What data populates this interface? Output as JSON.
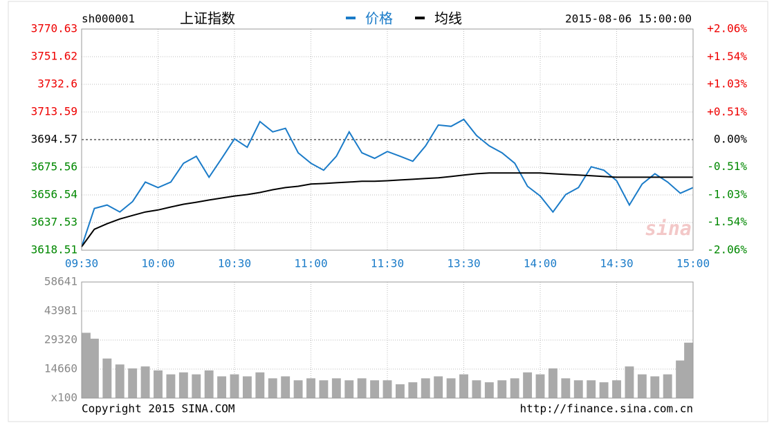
{
  "chart_data": [
    {
      "type": "line",
      "code": "sh000001",
      "title": "上证指数",
      "datetime": "2015-08-06 15:00:00",
      "watermark": "sina",
      "categories": [
        "09:30",
        null,
        null,
        null,
        null,
        null,
        "10:00",
        null,
        null,
        null,
        null,
        null,
        "10:30",
        null,
        null,
        null,
        null,
        null,
        "11:00",
        null,
        null,
        null,
        null,
        null,
        "11:30",
        null,
        null,
        null,
        null,
        null,
        "13:30",
        null,
        null,
        null,
        null,
        null,
        "14:00",
        null,
        null,
        null,
        null,
        null,
        "14:30",
        null,
        null,
        null,
        null,
        null,
        "15:00"
      ],
      "series": [
        {
          "name": "价格",
          "color": "#1a7bc8",
          "values": [
            3620.9,
            3647.2,
            3649.6,
            3644.8,
            3652.0,
            3665.4,
            3661.6,
            3665.4,
            3678.3,
            3683.1,
            3668.7,
            3681.7,
            3695.1,
            3689.3,
            3707.0,
            3699.9,
            3702.3,
            3685.5,
            3678.3,
            3673.5,
            3683.1,
            3699.9,
            3685.5,
            3681.7,
            3686.4,
            3683.1,
            3679.7,
            3690.3,
            3704.6,
            3703.7,
            3708.5,
            3697.4,
            3690.3,
            3685.5,
            3678.3,
            3662.5,
            3655.8,
            3644.8,
            3656.8,
            3661.6,
            3675.9,
            3673.5,
            3666.3,
            3649.6,
            3664.0,
            3671.1,
            3665.4,
            3657.7,
            3661.6
          ]
        },
        {
          "name": "均线",
          "color": "#000000",
          "values": [
            3620.9,
            3632.9,
            3636.7,
            3640.0,
            3642.4,
            3644.8,
            3646.2,
            3648.2,
            3650.1,
            3651.5,
            3653.0,
            3654.4,
            3655.8,
            3656.8,
            3658.2,
            3660.1,
            3661.6,
            3662.5,
            3664.0,
            3664.4,
            3664.9,
            3665.4,
            3665.9,
            3665.9,
            3666.3,
            3666.8,
            3667.3,
            3667.8,
            3668.3,
            3669.2,
            3670.2,
            3671.1,
            3671.6,
            3671.6,
            3671.6,
            3671.6,
            3671.6,
            3671.1,
            3670.6,
            3670.2,
            3669.7,
            3669.2,
            3668.7,
            3668.7,
            3668.7,
            3668.7,
            3668.7,
            3668.7,
            3668.7
          ]
        }
      ],
      "ylim": [
        3618.51,
        3770.63
      ],
      "yticks": [
        3770.63,
        3751.62,
        3732.6,
        3713.59,
        3694.57,
        3675.56,
        3656.54,
        3637.53,
        3618.51
      ],
      "y2lim": [
        -2.06,
        2.06
      ],
      "y2ticks": [
        {
          "value": 2.06,
          "label": "+2.06%"
        },
        {
          "value": 1.54,
          "label": "+1.54%"
        },
        {
          "value": 1.03,
          "label": "+1.03%"
        },
        {
          "value": 0.51,
          "label": "+0.51%"
        },
        {
          "value": 0,
          "label": "0.00%"
        },
        {
          "value": -0.51,
          "label": "-0.51%"
        },
        {
          "value": -1.03,
          "label": "-1.03%"
        },
        {
          "value": -1.54,
          "label": "-1.54%"
        },
        {
          "value": -2.06,
          "label": "-2.06%"
        }
      ],
      "grid": true
    },
    {
      "type": "bar",
      "color": "#aaaaaa",
      "values": [
        33000,
        30000,
        20000,
        17000,
        15000,
        16000,
        14000,
        12000,
        13000,
        12000,
        14000,
        11000,
        12000,
        11000,
        13000,
        10000,
        11000,
        9000,
        10000,
        9000,
        10000,
        9000,
        10000,
        9000,
        9000,
        7000,
        8000,
        10000,
        11000,
        10000,
        12000,
        9000,
        8000,
        9000,
        10000,
        13000,
        12000,
        15000,
        10000,
        9000,
        9000,
        8000,
        9000,
        16000,
        12000,
        11000,
        12000,
        19000,
        28000
      ],
      "ylim": [
        0,
        58641
      ],
      "yticks": [
        58641,
        43981,
        29320,
        14660,
        {
          "value": 0,
          "label": "x100"
        }
      ],
      "grid": true,
      "footer_left": "Copyright 2015 SINA.COM",
      "footer_right": "http://finance.sina.com.cn"
    }
  ]
}
